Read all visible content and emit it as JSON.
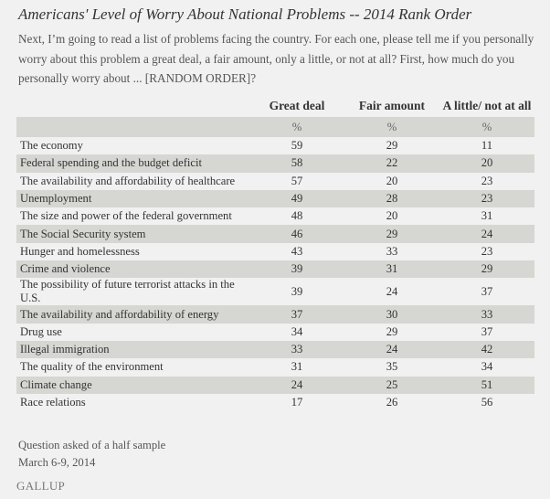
{
  "title": "Americans' Level of Worry About National Problems -- 2014 Rank Order",
  "question": "Next, I’m going to read a list of problems facing the country. For each one, please tell me if you personally worry about this problem a great deal, a fair amount, only a little, or not at all? First, how much do you personally worry about ... [RANDOM ORDER]?",
  "columns": [
    "Great deal",
    "Fair amount",
    "A little/ not at all"
  ],
  "unit_row": [
    "%",
    "%",
    "%"
  ],
  "rows": [
    {
      "label": "The economy",
      "values": [
        "59",
        "29",
        "11"
      ]
    },
    {
      "label": "Federal spending and the budget deficit",
      "values": [
        "58",
        "22",
        "20"
      ]
    },
    {
      "label": "The availability and affordability of healthcare",
      "values": [
        "57",
        "20",
        "23"
      ]
    },
    {
      "label": "Unemployment",
      "values": [
        "49",
        "28",
        "23"
      ]
    },
    {
      "label": "The size and power of the federal government",
      "values": [
        "48",
        "20",
        "31"
      ]
    },
    {
      "label": "The Social Security system",
      "values": [
        "46",
        "29",
        "24"
      ]
    },
    {
      "label": "Hunger and homelessness",
      "values": [
        "43",
        "33",
        "23"
      ]
    },
    {
      "label": "Crime and violence",
      "values": [
        "39",
        "31",
        "29"
      ]
    },
    {
      "label": "The possibility of future terrorist attacks in the U.S.",
      "values": [
        "39",
        "24",
        "37"
      ]
    },
    {
      "label": "The availability and affordability of energy",
      "values": [
        "37",
        "30",
        "33"
      ]
    },
    {
      "label": "Drug use",
      "values": [
        "34",
        "29",
        "37"
      ]
    },
    {
      "label": "Illegal immigration",
      "values": [
        "33",
        "24",
        "42"
      ]
    },
    {
      "label": "The quality of the environment",
      "values": [
        "31",
        "35",
        "34"
      ]
    },
    {
      "label": "Climate change",
      "values": [
        "24",
        "25",
        "51"
      ]
    },
    {
      "label": "Race relations",
      "values": [
        "17",
        "26",
        "56"
      ]
    }
  ],
  "footer": {
    "note": "Question asked of a half sample",
    "date": "March 6-9, 2014"
  },
  "logo": "GALLUP",
  "colors": {
    "background": "#f1f1f1",
    "row_shade": "#d6d6d2"
  }
}
